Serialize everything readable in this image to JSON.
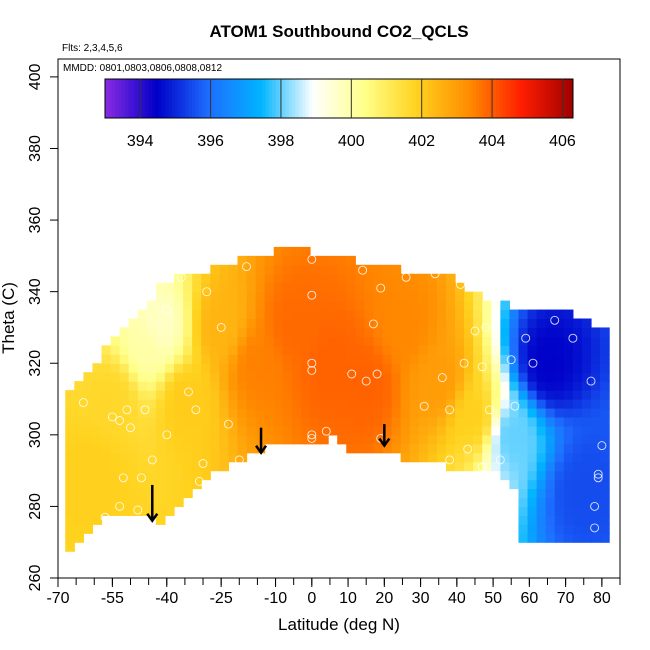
{
  "chart_data": {
    "type": "heatmap",
    "title": "ATOM1 Southbound CO2_QCLS",
    "subtitle_flights": "Flts: 2,3,4,5,6",
    "subtitle_dates": "MMDD: 0801,0803,0806,0808,0812",
    "xlabel": "Latitude (deg N)",
    "ylabel": "Theta (C)",
    "xlim": [
      -70,
      85
    ],
    "ylim": [
      260,
      405
    ],
    "x_ticks": [
      -70,
      -55,
      -40,
      -25,
      -10,
      0,
      10,
      20,
      30,
      40,
      50,
      60,
      70,
      80
    ],
    "y_ticks": [
      260,
      280,
      300,
      320,
      340,
      360,
      380,
      400
    ],
    "colorbar": {
      "min": 393,
      "max": 406.3,
      "ticks": [
        394,
        396,
        398,
        400,
        402,
        404,
        406
      ],
      "colors": [
        "#8a2be2",
        "#0000c8",
        "#1e6eff",
        "#00b4ff",
        "#ffffff",
        "#ffff88",
        "#ffd21e",
        "#ff8c00",
        "#ff1e00",
        "#a00000"
      ]
    },
    "grid": false,
    "surface": {
      "latitude_lower_boundary": [
        -68,
        -66,
        -60,
        -50,
        -42,
        -35,
        -25,
        -15,
        -8,
        0,
        5,
        10,
        20,
        30,
        40,
        48,
        52,
        56,
        56
      ],
      "theta_lower_boundary": [
        265,
        270,
        277,
        279,
        277,
        283,
        292,
        297,
        300,
        297,
        301,
        297,
        296,
        294,
        292,
        291,
        290,
        285,
        272
      ],
      "latitude_upper_boundary": [
        -68,
        -62,
        -55,
        -48,
        -40,
        -30,
        -20,
        -10,
        -5,
        0,
        10,
        20,
        30,
        40,
        45,
        50,
        60,
        70,
        78
      ],
      "theta_upper_boundary": [
        311,
        316,
        325,
        333,
        342,
        344,
        348,
        350,
        351,
        350,
        348,
        346,
        344,
        343,
        338,
        336,
        334,
        333,
        330
      ]
    },
    "field_samples": [
      {
        "lat": -60,
        "theta": 290,
        "co2": 401.9
      },
      {
        "lat": -55,
        "theta": 310,
        "co2": 401.7
      },
      {
        "lat": -45,
        "theta": 325,
        "co2": 400.0
      },
      {
        "lat": -42,
        "theta": 330,
        "co2": 399.6
      },
      {
        "lat": -35,
        "theta": 310,
        "co2": 402.0
      },
      {
        "lat": -25,
        "theta": 330,
        "co2": 402.5
      },
      {
        "lat": -15,
        "theta": 320,
        "co2": 403.5
      },
      {
        "lat": -5,
        "theta": 330,
        "co2": 403.8
      },
      {
        "lat": 5,
        "theta": 320,
        "co2": 403.9
      },
      {
        "lat": 15,
        "theta": 315,
        "co2": 403.9
      },
      {
        "lat": 25,
        "theta": 330,
        "co2": 403.4
      },
      {
        "lat": 35,
        "theta": 315,
        "co2": 403.0
      },
      {
        "lat": 45,
        "theta": 305,
        "co2": 401.9
      },
      {
        "lat": 55,
        "theta": 300,
        "co2": 398.0
      },
      {
        "lat": 65,
        "theta": 320,
        "co2": 394.5
      },
      {
        "lat": 75,
        "theta": 285,
        "co2": 395.5
      }
    ],
    "sample_points": [
      {
        "lat": -68,
        "theta": 266
      },
      {
        "lat": -57,
        "theta": 277
      },
      {
        "lat": -53,
        "theta": 280
      },
      {
        "lat": -48,
        "theta": 279
      },
      {
        "lat": -52,
        "theta": 288
      },
      {
        "lat": -47,
        "theta": 288
      },
      {
        "lat": -44,
        "theta": 293
      },
      {
        "lat": -31,
        "theta": 287
      },
      {
        "lat": -30,
        "theta": 292
      },
      {
        "lat": -20,
        "theta": 293
      },
      {
        "lat": -63,
        "theta": 309
      },
      {
        "lat": -55,
        "theta": 305
      },
      {
        "lat": -53,
        "theta": 304
      },
      {
        "lat": -51,
        "theta": 307
      },
      {
        "lat": -50,
        "theta": 302
      },
      {
        "lat": -46,
        "theta": 307
      },
      {
        "lat": -40,
        "theta": 300
      },
      {
        "lat": -34,
        "theta": 312
      },
      {
        "lat": -32,
        "theta": 307
      },
      {
        "lat": -23,
        "theta": 303
      },
      {
        "lat": -40,
        "theta": 335
      },
      {
        "lat": -36,
        "theta": 344
      },
      {
        "lat": -29,
        "theta": 340
      },
      {
        "lat": -25,
        "theta": 330
      },
      {
        "lat": -18,
        "theta": 347
      },
      {
        "lat": 0,
        "theta": 349
      },
      {
        "lat": 0,
        "theta": 339
      },
      {
        "lat": 14,
        "theta": 346
      },
      {
        "lat": 19,
        "theta": 341
      },
      {
        "lat": 17,
        "theta": 331
      },
      {
        "lat": 26,
        "theta": 344
      },
      {
        "lat": 34,
        "theta": 345
      },
      {
        "lat": 41,
        "theta": 342
      },
      {
        "lat": 0,
        "theta": 320
      },
      {
        "lat": 0,
        "theta": 318
      },
      {
        "lat": 11,
        "theta": 317
      },
      {
        "lat": 15,
        "theta": 315
      },
      {
        "lat": 18,
        "theta": 317
      },
      {
        "lat": 0,
        "theta": 300
      },
      {
        "lat": 0,
        "theta": 299
      },
      {
        "lat": 4,
        "theta": 301
      },
      {
        "lat": 19,
        "theta": 299
      },
      {
        "lat": 31,
        "theta": 308
      },
      {
        "lat": 36,
        "theta": 316
      },
      {
        "lat": 38,
        "theta": 307
      },
      {
        "lat": 42,
        "theta": 320
      },
      {
        "lat": 45,
        "theta": 329
      },
      {
        "lat": 47,
        "theta": 319
      },
      {
        "lat": 49,
        "theta": 307
      },
      {
        "lat": 38,
        "theta": 293
      },
      {
        "lat": 43,
        "theta": 296
      },
      {
        "lat": 47,
        "theta": 291
      },
      {
        "lat": 52,
        "theta": 293
      },
      {
        "lat": 59,
        "theta": 327
      },
      {
        "lat": 56,
        "theta": 308
      },
      {
        "lat": 61,
        "theta": 320
      },
      {
        "lat": 67,
        "theta": 332
      },
      {
        "lat": 72,
        "theta": 327
      },
      {
        "lat": 77,
        "theta": 315
      },
      {
        "lat": 80,
        "theta": 297
      },
      {
        "lat": 79,
        "theta": 289
      },
      {
        "lat": 79,
        "theta": 288
      },
      {
        "lat": 78,
        "theta": 280
      },
      {
        "lat": 78,
        "theta": 274
      },
      {
        "lat": 48,
        "theta": 330
      },
      {
        "lat": 55,
        "theta": 321
      }
    ],
    "arrows": [
      {
        "lat": -44,
        "theta_top": 286,
        "theta_tip": 276
      },
      {
        "lat": -14,
        "theta_top": 302,
        "theta_tip": 295
      },
      {
        "lat": 20,
        "theta_top": 303,
        "theta_tip": 297
      }
    ]
  }
}
